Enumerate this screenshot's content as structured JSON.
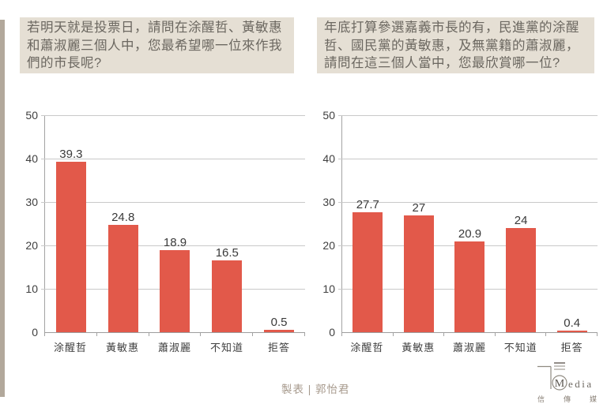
{
  "page": {
    "background": "#FFFFFF",
    "edge_strip_color": "#B2A89B",
    "credit": "製表 | 郭怡君"
  },
  "chart_data": [
    {
      "type": "bar",
      "title": "若明天就是投票日，請問在涂醒哲、黃敏惠和蕭淑麗三個人中，您最希望哪一位來作我們的市長呢?",
      "categories": [
        "涂醒哲",
        "黃敏惠",
        "蕭淑麗",
        "不知道",
        "拒答"
      ],
      "values": [
        39.3,
        24.8,
        18.9,
        16.5,
        0.5
      ],
      "xlabel": "",
      "ylabel": "",
      "ylim": [
        0,
        50
      ],
      "yticks": [
        0,
        10,
        20,
        30,
        40,
        50
      ],
      "grid": true,
      "legend": "none",
      "value_labels": true,
      "bar_color": "#E2594A"
    },
    {
      "type": "bar",
      "title": "年底打算參選嘉義市長的有，民進黨的涂醒哲、國民黨的黃敏惠，及無黨籍的蕭淑麗，請問在這三個人當中，您最欣賞哪一位?",
      "categories": [
        "涂醒哲",
        "黃敏惠",
        "蕭淑麗",
        "不知道",
        "拒答"
      ],
      "values": [
        27.7,
        27,
        20.9,
        24,
        0.4
      ],
      "xlabel": "",
      "ylabel": "",
      "ylim": [
        0,
        50
      ],
      "yticks": [
        0,
        10,
        20,
        30,
        40,
        50
      ],
      "grid": true,
      "legend": "none",
      "value_labels": true,
      "bar_color": "#E2594A"
    }
  ],
  "question_boxes": {
    "background": "#E5DFD4",
    "text_color": "#6B6760"
  },
  "logo": {
    "monogram": "M",
    "wordmark_suffix": "edia",
    "subtext": "信傳媒"
  }
}
